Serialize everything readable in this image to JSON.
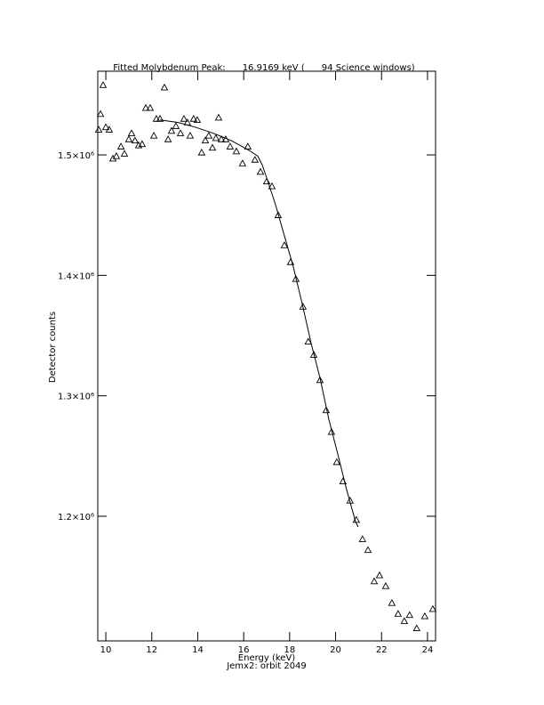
{
  "chart_data": {
    "type": "scatter",
    "title": "Fitted Molybdenum Peak:      16.9169 keV (      94 Science windows)",
    "xlabel": "Energy (keV)",
    "ylabel": "Detector counts",
    "footer": "Jemx2: orbit 2049",
    "color": "#000000",
    "x": [
      9.69,
      9.77,
      9.88,
      10.0,
      10.15,
      10.31,
      10.46,
      10.66,
      10.81,
      11.0,
      11.12,
      11.27,
      11.43,
      11.58,
      11.74,
      11.93,
      12.09,
      12.2,
      12.36,
      12.55,
      12.71,
      12.86,
      13.05,
      13.25,
      13.4,
      13.55,
      13.67,
      13.82,
      13.98,
      14.17,
      14.33,
      14.48,
      14.64,
      14.79,
      14.91,
      15.03,
      15.22,
      15.41,
      15.68,
      15.95,
      16.18,
      16.49,
      16.73,
      17.0,
      17.23,
      17.5,
      17.77,
      18.04,
      18.27,
      18.58,
      18.81,
      19.05,
      19.32,
      19.59,
      19.82,
      20.05,
      20.32,
      20.63,
      20.9,
      21.17,
      21.41,
      21.68,
      21.91,
      22.18,
      22.45,
      22.72,
      22.99,
      23.22,
      23.53,
      23.88,
      24.23
    ],
    "values": [
      1521000,
      1534000,
      1558000,
      1523000,
      1521000,
      1497000,
      1499000,
      1507000,
      1501000,
      1513000,
      1518000,
      1512000,
      1508000,
      1509000,
      1539000,
      1539000,
      1516000,
      1530000,
      1530000,
      1556000,
      1513000,
      1520000,
      1524000,
      1518000,
      1530000,
      1527000,
      1516000,
      1530000,
      1529000,
      1502000,
      1512000,
      1516000,
      1506000,
      1514000,
      1531000,
      1513000,
      1513000,
      1507000,
      1503000,
      1493000,
      1507000,
      1496000,
      1486000,
      1478000,
      1474000,
      1450000,
      1425000,
      1411000,
      1397000,
      1374000,
      1345000,
      1334000,
      1313000,
      1288000,
      1270000,
      1245000,
      1229000,
      1213000,
      1197000,
      1181000,
      1172000,
      1146000,
      1151000,
      1142000,
      1128000,
      1119000,
      1113000,
      1118000,
      1107000,
      1117000,
      1123000
    ],
    "fit": {
      "x": [
        12.36,
        13.13,
        13.9,
        14.68,
        15.45,
        16.22,
        16.61,
        16.8,
        17.0,
        17.38,
        17.77,
        18.16,
        18.54,
        18.93,
        19.32,
        19.7,
        20.09,
        20.48,
        20.86,
        20.98
      ],
      "values": [
        1529000,
        1527000,
        1523000,
        1518000,
        1512000,
        1504000,
        1499000,
        1492000,
        1481000,
        1459000,
        1433000,
        1407000,
        1377000,
        1344000,
        1315000,
        1281000,
        1252000,
        1222000,
        1196000,
        1191000
      ]
    },
    "xlim": [
      9.65,
      24.35
    ],
    "ylim": [
      1096500,
      1569500
    ],
    "xticks": [
      10,
      12,
      14,
      16,
      18,
      20,
      22,
      24
    ],
    "yticks": [
      {
        "value": 1200000,
        "label": "1.2×10⁶"
      },
      {
        "value": 1300000,
        "label": "1.3×10⁶"
      },
      {
        "value": 1400000,
        "label": "1.4×10⁶"
      },
      {
        "value": 1500000,
        "label": "1.5×10⁶"
      }
    ]
  }
}
